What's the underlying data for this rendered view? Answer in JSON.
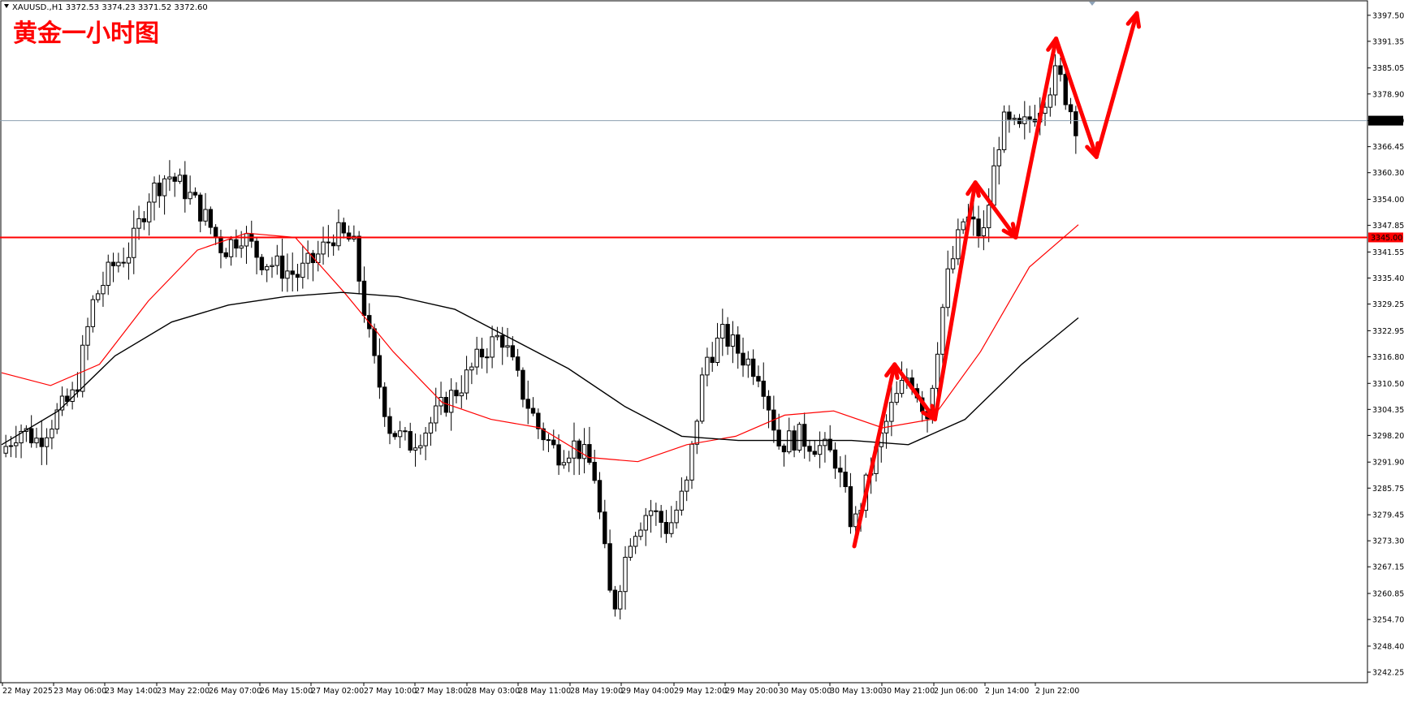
{
  "header": {
    "symbol_info": "XAUUSD.,H1  3372.53 3374.23 3371.52 3372.60",
    "title": "黄金一小时图"
  },
  "colors": {
    "background": "#ffffff",
    "candle": "#000000",
    "ma_fast": "#ff0000",
    "ma_slow": "#000000",
    "support_line": "#ff0000",
    "current_price_line": "#8ca0b0",
    "annotation_arrow": "#ff0000",
    "title_text": "#ff0000"
  },
  "chart_data": {
    "type": "candlestick",
    "symbol": "XAUUSD.",
    "timeframe": "H1",
    "current_price": "3372.60",
    "support_level": "3345.00",
    "ylim": [
      3242.25,
      3399.0
    ],
    "y_ticks": [
      "3397.50",
      "3391.35",
      "3385.05",
      "3378.90",
      "3372.60",
      "3366.45",
      "3360.30",
      "3354.00",
      "3347.85",
      "3341.55",
      "3335.40",
      "3329.25",
      "3322.95",
      "3316.80",
      "3310.50",
      "3304.35",
      "3298.20",
      "3291.90",
      "3285.75",
      "3279.45",
      "3273.30",
      "3267.15",
      "3260.85",
      "3254.70",
      "3248.40",
      "3242.25"
    ],
    "x_ticks": [
      "22 May 2025",
      "23 May 06:00",
      "23 May 14:00",
      "23 May 22:00",
      "26 May 07:00",
      "26 May 15:00",
      "27 May 02:00",
      "27 May 10:00",
      "27 May 18:00",
      "28 May 03:00",
      "28 May 11:00",
      "28 May 19:00",
      "29 May 04:00",
      "29 May 12:00",
      "29 May 20:00",
      "30 May 05:00",
      "30 May 13:00",
      "30 May 21:00",
      "2 Jun 06:00",
      "2 Jun 14:00",
      "2 Jun 22:00"
    ],
    "price_path": [
      3294,
      3300,
      3297,
      3303,
      3308,
      3330,
      3338,
      3342,
      3355,
      3360,
      3356,
      3350,
      3342,
      3346,
      3340,
      3338,
      3336,
      3340,
      3346,
      3344,
      3318,
      3300,
      3296,
      3300,
      3306,
      3311,
      3318,
      3322,
      3310,
      3300,
      3294,
      3296,
      3290,
      3256,
      3275,
      3281,
      3276,
      3286,
      3316,
      3322,
      3317,
      3313,
      3296,
      3298,
      3296,
      3293,
      3276,
      3291,
      3304,
      3313,
      3303,
      3334,
      3350,
      3345,
      3372,
      3370,
      3376,
      3384,
      3372
    ],
    "ma_fast": [
      3313,
      3310,
      3315,
      3330,
      3342,
      3346,
      3345,
      3332,
      3318,
      3306,
      3302,
      3300,
      3293,
      3292,
      3296,
      3298,
      3303,
      3304,
      3300,
      3302,
      3318,
      3338,
      3348
    ],
    "ma_slow": [
      3296,
      3304,
      3317,
      3325,
      3329,
      3331,
      3332,
      3331,
      3328,
      3321,
      3314,
      3305,
      3298,
      3297,
      3297,
      3297,
      3296,
      3302,
      3315,
      3326
    ],
    "annotation_arrow_path": [
      3272,
      3315,
      3302,
      3358,
      3345,
      3392,
      3364,
      3398
    ]
  }
}
